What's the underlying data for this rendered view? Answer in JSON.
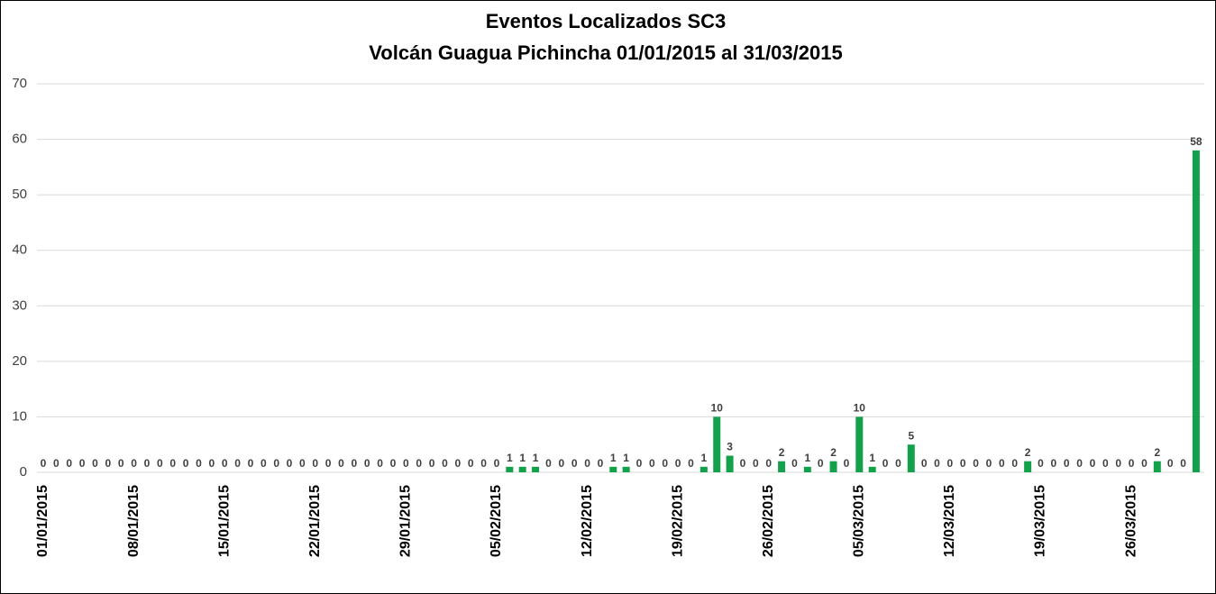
{
  "chart_data": {
    "type": "bar",
    "title": "Eventos Localizados SC3",
    "subtitle": "Volcán Guagua Pichincha 01/01/2015 al  31/03/2015",
    "categories": [
      "01/01/2015",
      null,
      null,
      null,
      null,
      null,
      null,
      "08/01/2015",
      null,
      null,
      null,
      null,
      null,
      null,
      "15/01/2015",
      null,
      null,
      null,
      null,
      null,
      null,
      "22/01/2015",
      null,
      null,
      null,
      null,
      null,
      null,
      "29/01/2015",
      null,
      null,
      null,
      null,
      null,
      null,
      "05/02/2015",
      null,
      null,
      null,
      null,
      null,
      null,
      "12/02/2015",
      null,
      null,
      null,
      null,
      null,
      null,
      "19/02/2015",
      null,
      null,
      null,
      null,
      null,
      null,
      "26/02/2015",
      null,
      null,
      null,
      null,
      null,
      null,
      "05/03/2015",
      null,
      null,
      null,
      null,
      null,
      null,
      "12/03/2015",
      null,
      null,
      null,
      null,
      null,
      null,
      "19/03/2015",
      null,
      null,
      null,
      null,
      null,
      null,
      "26/03/2015",
      null,
      null,
      null,
      null,
      null
    ],
    "values": [
      0,
      0,
      0,
      0,
      0,
      0,
      0,
      0,
      0,
      0,
      0,
      0,
      0,
      0,
      0,
      0,
      0,
      0,
      0,
      0,
      0,
      0,
      0,
      0,
      0,
      0,
      0,
      0,
      0,
      0,
      0,
      0,
      0,
      0,
      0,
      0,
      1,
      1,
      1,
      0,
      0,
      0,
      0,
      0,
      1,
      1,
      0,
      0,
      0,
      0,
      0,
      1,
      10,
      3,
      0,
      0,
      0,
      2,
      0,
      1,
      0,
      2,
      0,
      10,
      1,
      0,
      0,
      5,
      0,
      0,
      0,
      0,
      0,
      0,
      0,
      0,
      2,
      0,
      0,
      0,
      0,
      0,
      0,
      0,
      0,
      0,
      2,
      0,
      0,
      58
    ],
    "color": "#13a24b",
    "ylim": [
      0,
      70
    ],
    "yticks": [
      0,
      10,
      20,
      30,
      40,
      50,
      60,
      70
    ],
    "grid": true
  }
}
